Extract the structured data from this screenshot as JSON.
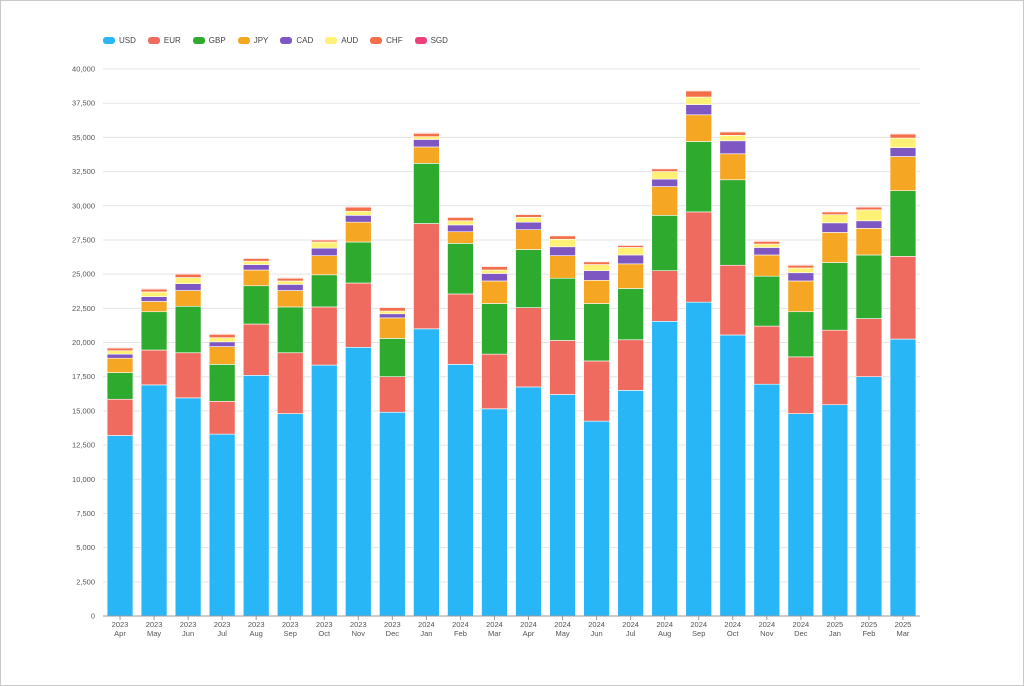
{
  "chart_data": {
    "type": "bar",
    "stacked": true,
    "grid": true,
    "legend_position": "top-left",
    "ylim": [
      0,
      40000
    ],
    "yticks": [
      "0",
      "2,500",
      "5,000",
      "7,500",
      "10,000",
      "12,500",
      "15,000",
      "17,500",
      "20,000",
      "22,500",
      "25,000",
      "27,500",
      "30,000",
      "32,500",
      "35,000",
      "37,500",
      "40,000"
    ],
    "categories": [
      {
        "year": "2023",
        "month": "Apr"
      },
      {
        "year": "2023",
        "month": "May"
      },
      {
        "year": "2023",
        "month": "Jun"
      },
      {
        "year": "2023",
        "month": "Jul"
      },
      {
        "year": "2023",
        "month": "Aug"
      },
      {
        "year": "2023",
        "month": "Sep"
      },
      {
        "year": "2023",
        "month": "Oct"
      },
      {
        "year": "2023",
        "month": "Nov"
      },
      {
        "year": "2023",
        "month": "Dec"
      },
      {
        "year": "2024",
        "month": "Jan"
      },
      {
        "year": "2024",
        "month": "Feb"
      },
      {
        "year": "2024",
        "month": "Mar"
      },
      {
        "year": "2024",
        "month": "Apr"
      },
      {
        "year": "2024",
        "month": "May"
      },
      {
        "year": "2024",
        "month": "Jun"
      },
      {
        "year": "2024",
        "month": "Jul"
      },
      {
        "year": "2024",
        "month": "Aug"
      },
      {
        "year": "2024",
        "month": "Sep"
      },
      {
        "year": "2024",
        "month": "Oct"
      },
      {
        "year": "2024",
        "month": "Nov"
      },
      {
        "year": "2024",
        "month": "Dec"
      },
      {
        "year": "2025",
        "month": "Jan"
      },
      {
        "year": "2025",
        "month": "Feb"
      },
      {
        "year": "2025",
        "month": "Mar"
      }
    ],
    "series": [
      {
        "name": "USD",
        "color": "#29b6f6",
        "values": [
          13200,
          16900,
          15950,
          13300,
          17600,
          14800,
          18350,
          19650,
          14900,
          21000,
          18400,
          15150,
          16750,
          16200,
          14250,
          16500,
          21550,
          22950,
          20550,
          16950,
          14800,
          15450,
          17500,
          20250
        ]
      },
      {
        "name": "EUR",
        "color": "#ef6b60",
        "values": [
          2650,
          2550,
          3300,
          2400,
          3750,
          4450,
          4250,
          4700,
          2600,
          7700,
          5150,
          4000,
          5800,
          3950,
          4400,
          3700,
          3700,
          6600,
          5100,
          4250,
          4150,
          5450,
          4250,
          6050
        ]
      },
      {
        "name": "GBP",
        "color": "#2eaa2e",
        "values": [
          1950,
          2800,
          3400,
          2700,
          2800,
          3350,
          2350,
          3000,
          2800,
          4400,
          3700,
          3700,
          4250,
          4550,
          4200,
          3750,
          4050,
          5150,
          6250,
          3650,
          3300,
          4950,
          4650,
          4800
        ]
      },
      {
        "name": "JPY",
        "color": "#f5a623",
        "values": [
          1050,
          750,
          1150,
          1300,
          1150,
          1200,
          1400,
          1450,
          1500,
          1200,
          850,
          1650,
          1450,
          1650,
          1700,
          1800,
          2100,
          1950,
          1900,
          1550,
          2250,
          2200,
          1950,
          2500
        ]
      },
      {
        "name": "CAD",
        "color": "#7e57c2",
        "values": [
          300,
          350,
          500,
          350,
          400,
          450,
          550,
          500,
          300,
          550,
          500,
          550,
          550,
          650,
          700,
          650,
          550,
          750,
          950,
          550,
          600,
          700,
          550,
          650
        ]
      },
      {
        "name": "AUD",
        "color": "#fff176",
        "values": [
          250,
          350,
          450,
          300,
          250,
          250,
          450,
          300,
          200,
          200,
          300,
          250,
          350,
          550,
          450,
          550,
          550,
          550,
          400,
          250,
          350,
          600,
          800,
          700
        ]
      },
      {
        "name": "CHF",
        "color": "#f26f4a",
        "values": [
          200,
          200,
          250,
          250,
          200,
          200,
          150,
          300,
          250,
          250,
          250,
          250,
          200,
          250,
          200,
          150,
          200,
          450,
          250,
          200,
          200,
          200,
          200,
          300
        ]
      },
      {
        "name": "SGD",
        "color": "#ec407a",
        "values": [
          50,
          50,
          50,
          50,
          50,
          50,
          50,
          50,
          50,
          50,
          50,
          50,
          50,
          50,
          50,
          50,
          50,
          50,
          50,
          50,
          50,
          50,
          50,
          50
        ]
      }
    ]
  }
}
